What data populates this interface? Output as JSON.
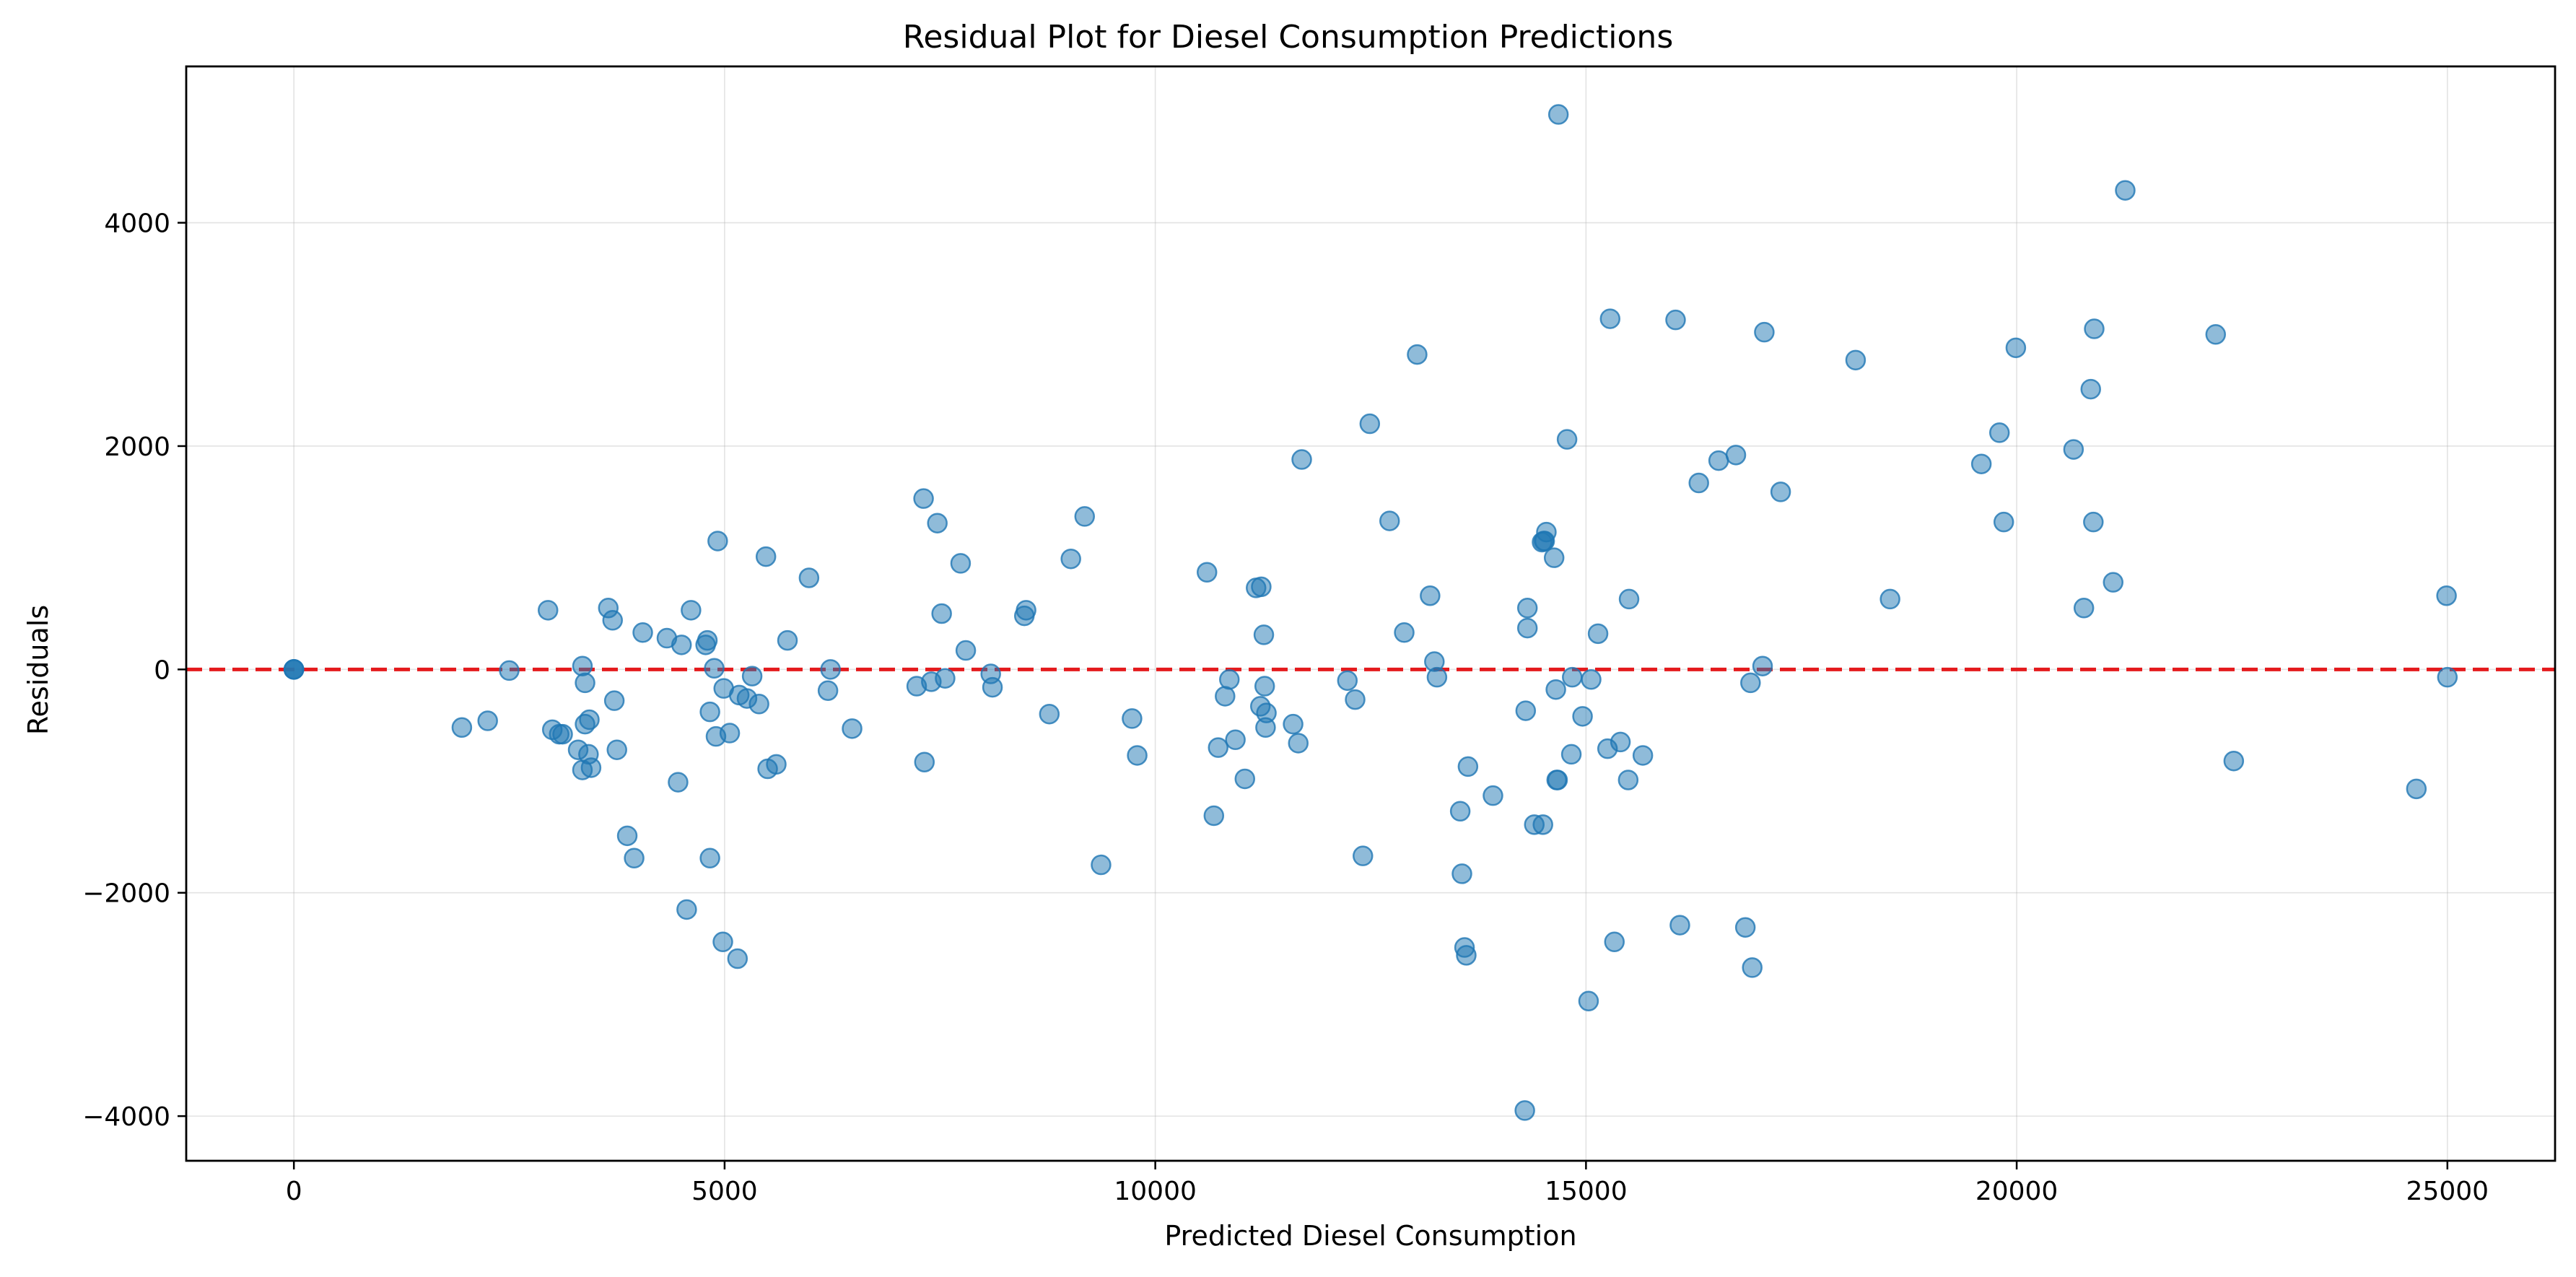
{
  "chart_data": {
    "type": "scatter",
    "title": "Residual Plot for Diesel Consumption Predictions",
    "xlabel": "Predicted Diesel Consumption",
    "ylabel": "Residuals",
    "xlim": [
      -1250,
      26250
    ],
    "ylim": [
      -4400,
      5400
    ],
    "xticks": [
      0,
      5000,
      10000,
      15000,
      20000,
      25000
    ],
    "xtick_labels": [
      "0",
      "5000",
      "10000",
      "15000",
      "20000",
      "25000"
    ],
    "yticks": [
      -4000,
      -2000,
      0,
      2000,
      4000
    ],
    "ytick_labels": [
      "−4000",
      "−2000",
      "0",
      "2000",
      "4000"
    ],
    "grid": true,
    "reference_line": {
      "y": 0,
      "style": "dashed",
      "color": "#e41a1c"
    },
    "point_color": "#1f77b4",
    "points": [
      [
        0,
        0
      ],
      [
        0,
        0
      ],
      [
        0,
        0
      ],
      [
        0,
        0
      ],
      [
        1950,
        -520
      ],
      [
        2250,
        -460
      ],
      [
        2500,
        -10
      ],
      [
        2950,
        530
      ],
      [
        3000,
        -540
      ],
      [
        3080,
        -580
      ],
      [
        3120,
        -580
      ],
      [
        3300,
        -720
      ],
      [
        3350,
        -900
      ],
      [
        3350,
        30
      ],
      [
        3380,
        -120
      ],
      [
        3380,
        -490
      ],
      [
        3420,
        -760
      ],
      [
        3430,
        -450
      ],
      [
        3450,
        -880
      ],
      [
        3650,
        550
      ],
      [
        3700,
        440
      ],
      [
        3720,
        -280
      ],
      [
        3750,
        -720
      ],
      [
        3870,
        -1490
      ],
      [
        3950,
        -1690
      ],
      [
        4050,
        330
      ],
      [
        4330,
        280
      ],
      [
        4460,
        -1010
      ],
      [
        4500,
        220
      ],
      [
        4560,
        -2150
      ],
      [
        4610,
        530
      ],
      [
        4780,
        220
      ],
      [
        4800,
        260
      ],
      [
        4830,
        -380
      ],
      [
        4830,
        -1690
      ],
      [
        4880,
        10
      ],
      [
        4900,
        -600
      ],
      [
        4920,
        1150
      ],
      [
        4980,
        -2440
      ],
      [
        4990,
        -170
      ],
      [
        5060,
        -570
      ],
      [
        5150,
        -2590
      ],
      [
        5170,
        -230
      ],
      [
        5260,
        -260
      ],
      [
        5320,
        -60
      ],
      [
        5400,
        -310
      ],
      [
        5480,
        1010
      ],
      [
        5500,
        -890
      ],
      [
        5600,
        -850
      ],
      [
        5730,
        260
      ],
      [
        5980,
        820
      ],
      [
        6200,
        -190
      ],
      [
        6230,
        0
      ],
      [
        6480,
        -530
      ],
      [
        7230,
        -150
      ],
      [
        7310,
        1530
      ],
      [
        7320,
        -830
      ],
      [
        7400,
        -110
      ],
      [
        7470,
        1310
      ],
      [
        7520,
        500
      ],
      [
        7560,
        -80
      ],
      [
        7740,
        950
      ],
      [
        7800,
        170
      ],
      [
        8090,
        -40
      ],
      [
        8110,
        -160
      ],
      [
        8480,
        480
      ],
      [
        8500,
        530
      ],
      [
        8770,
        -400
      ],
      [
        9020,
        990
      ],
      [
        9180,
        1370
      ],
      [
        9370,
        -1750
      ],
      [
        9730,
        -440
      ],
      [
        9790,
        -770
      ],
      [
        10600,
        870
      ],
      [
        10680,
        -1310
      ],
      [
        10730,
        -700
      ],
      [
        10810,
        -240
      ],
      [
        10860,
        -90
      ],
      [
        10930,
        -630
      ],
      [
        11040,
        -980
      ],
      [
        11170,
        730
      ],
      [
        11220,
        -330
      ],
      [
        11230,
        740
      ],
      [
        11260,
        310
      ],
      [
        11270,
        -150
      ],
      [
        11280,
        -520
      ],
      [
        11290,
        -390
      ],
      [
        11600,
        -490
      ],
      [
        11660,
        -660
      ],
      [
        11700,
        1880
      ],
      [
        12230,
        -100
      ],
      [
        12320,
        -270
      ],
      [
        12410,
        -1670
      ],
      [
        12490,
        2200
      ],
      [
        12720,
        1330
      ],
      [
        12890,
        330
      ],
      [
        13040,
        2820
      ],
      [
        13190,
        660
      ],
      [
        13240,
        70
      ],
      [
        13270,
        -70
      ],
      [
        13540,
        -1270
      ],
      [
        13560,
        -1830
      ],
      [
        13590,
        -2490
      ],
      [
        13610,
        -2560
      ],
      [
        13630,
        -870
      ],
      [
        13920,
        -1130
      ],
      [
        14290,
        -3950
      ],
      [
        14300,
        -370
      ],
      [
        14320,
        550
      ],
      [
        14320,
        370
      ],
      [
        14400,
        -1390
      ],
      [
        14490,
        1140
      ],
      [
        14500,
        -1390
      ],
      [
        14510,
        1150
      ],
      [
        14520,
        1150
      ],
      [
        14540,
        1230
      ],
      [
        14630,
        1000
      ],
      [
        14650,
        -180
      ],
      [
        14660,
        -990
      ],
      [
        14670,
        -990
      ],
      [
        14680,
        4970
      ],
      [
        14780,
        2060
      ],
      [
        14830,
        -760
      ],
      [
        14840,
        -70
      ],
      [
        14960,
        -420
      ],
      [
        15030,
        -2970
      ],
      [
        15060,
        -90
      ],
      [
        15140,
        320
      ],
      [
        15250,
        -710
      ],
      [
        15280,
        3140
      ],
      [
        15330,
        -2440
      ],
      [
        15400,
        -650
      ],
      [
        15490,
        -990
      ],
      [
        15500,
        630
      ],
      [
        15660,
        -770
      ],
      [
        16040,
        3130
      ],
      [
        16090,
        -2290
      ],
      [
        16310,
        1670
      ],
      [
        16540,
        1870
      ],
      [
        16740,
        1920
      ],
      [
        16850,
        -2310
      ],
      [
        16910,
        -120
      ],
      [
        16930,
        -2670
      ],
      [
        17050,
        30
      ],
      [
        17070,
        3020
      ],
      [
        17260,
        1590
      ],
      [
        18130,
        2770
      ],
      [
        18530,
        630
      ],
      [
        19590,
        1840
      ],
      [
        19800,
        2120
      ],
      [
        19850,
        1320
      ],
      [
        19990,
        2880
      ],
      [
        20660,
        1970
      ],
      [
        20780,
        550
      ],
      [
        20860,
        2510
      ],
      [
        20890,
        1320
      ],
      [
        20900,
        3050
      ],
      [
        21120,
        780
      ],
      [
        21260,
        4290
      ],
      [
        22310,
        3000
      ],
      [
        22520,
        -820
      ],
      [
        24640,
        -1070
      ],
      [
        24990,
        660
      ],
      [
        25000,
        -70
      ]
    ]
  }
}
